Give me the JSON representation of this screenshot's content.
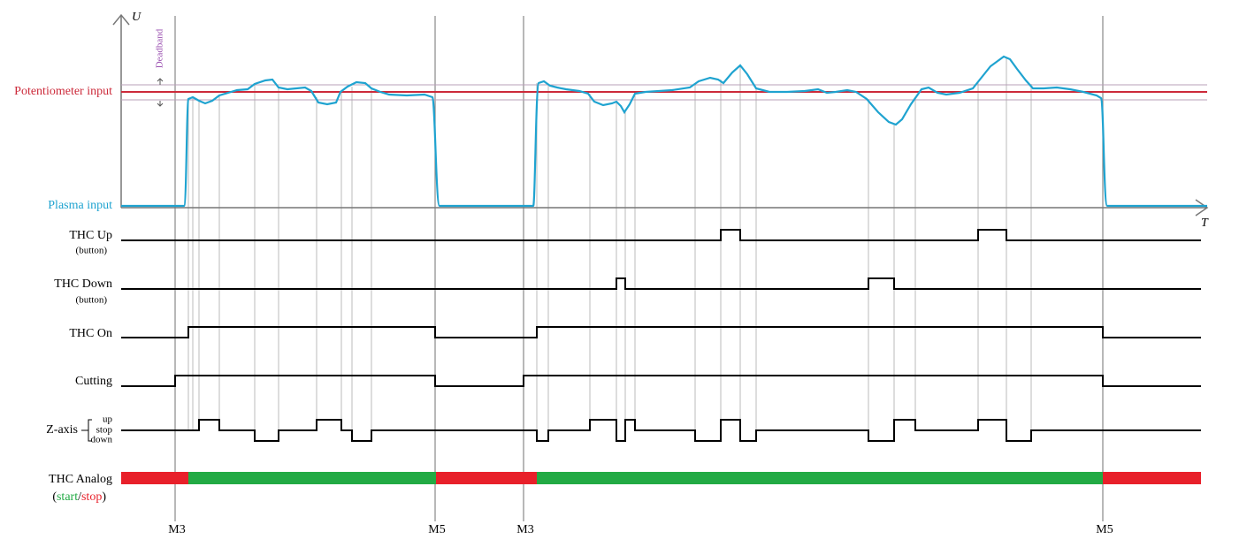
{
  "axis": {
    "y_label": "U",
    "x_label": "T",
    "deadband": "Deadband"
  },
  "levels": {
    "potentiometer": "Potentiometer input",
    "plasma": "Plasma input"
  },
  "signals": [
    {
      "label": "THC Up",
      "sublabel": "(button)"
    },
    {
      "label": "THC Down",
      "sublabel": "(button)"
    },
    {
      "label": "THC On"
    },
    {
      "label": "Cutting"
    },
    {
      "label": "Z-axis",
      "states": [
        "up",
        "stop",
        "down"
      ]
    },
    {
      "label": "THC Analog",
      "legend": {
        "open": "(",
        "start": "start",
        "sep": "/",
        "stop": "stop",
        "close": ")"
      }
    }
  ],
  "markers": [
    "M3",
    "M5",
    "M3",
    "M5"
  ]
}
